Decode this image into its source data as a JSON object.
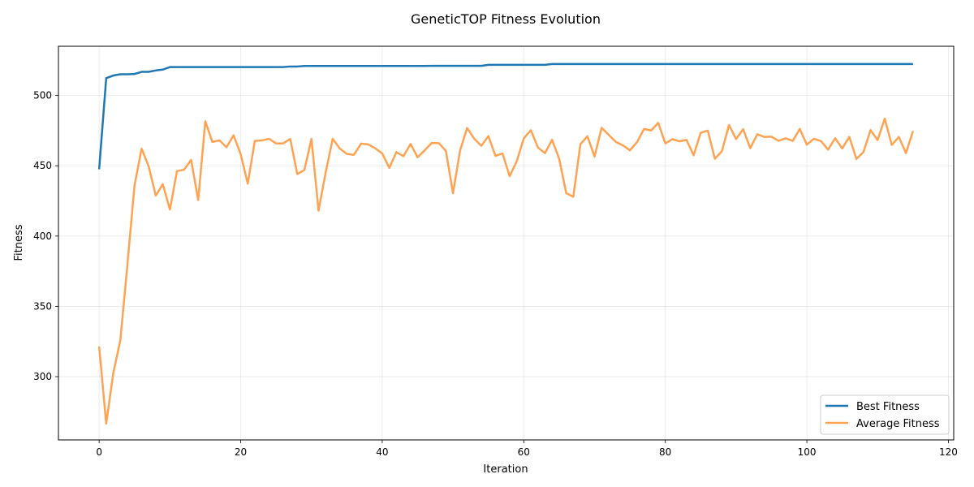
{
  "chart_data": {
    "type": "line",
    "title": "GeneticTOP Fitness Evolution",
    "xlabel": "Iteration",
    "ylabel": "Fitness",
    "xlim": [
      -5.75,
      120.75
    ],
    "ylim": [
      255,
      535
    ],
    "xticks": [
      0,
      20,
      40,
      60,
      80,
      100,
      120
    ],
    "yticks": [
      300,
      350,
      400,
      450,
      500
    ],
    "grid": true,
    "legend_position": "lower-right",
    "series": [
      {
        "name": "Best Fitness",
        "color": "#1f77b4",
        "values": [
          447.5,
          512.3,
          514.2,
          515.1,
          515.1,
          515.3,
          516.8,
          516.8,
          517.8,
          518.4,
          520.2,
          520.2,
          520.2,
          520.2,
          520.2,
          520.2,
          520.2,
          520.2,
          520.2,
          520.2,
          520.2,
          520.2,
          520.2,
          520.2,
          520.2,
          520.2,
          520.2,
          520.6,
          520.6,
          521.0,
          521.0,
          521.0,
          521.0,
          521.0,
          521.0,
          521.0,
          521.0,
          521.0,
          521.0,
          521.0,
          521.0,
          521.0,
          521.0,
          521.0,
          521.0,
          521.0,
          521.0,
          521.1,
          521.1,
          521.1,
          521.1,
          521.1,
          521.1,
          521.1,
          521.1,
          521.8,
          521.8,
          521.8,
          521.8,
          521.8,
          521.8,
          521.8,
          521.8,
          521.8,
          522.4,
          522.4,
          522.4,
          522.4,
          522.4,
          522.4,
          522.4,
          522.4,
          522.4,
          522.4,
          522.4,
          522.4,
          522.4,
          522.4,
          522.4,
          522.4,
          522.4,
          522.4,
          522.4,
          522.4,
          522.4,
          522.4,
          522.4,
          522.4,
          522.4,
          522.4,
          522.4,
          522.4,
          522.4,
          522.4,
          522.4,
          522.4,
          522.4,
          522.4,
          522.4,
          522.4,
          522.4,
          522.4,
          522.4,
          522.4,
          522.4,
          522.4,
          522.4,
          522.4,
          522.4,
          522.4,
          522.4,
          522.4,
          522.4,
          522.4,
          522.4,
          522.4
        ]
      },
      {
        "name": "Average Fitness",
        "color": "#ffa352",
        "values": [
          321.5,
          266.6,
          302.5,
          326.0,
          380.0,
          436.0,
          462.2,
          449.5,
          428.8,
          436.9,
          418.9,
          446.2,
          447.2,
          454.2,
          425.6,
          481.7,
          466.9,
          468.1,
          463.2,
          471.7,
          458.2,
          437.3,
          467.7,
          468.0,
          469.2,
          465.9,
          465.9,
          469.1,
          444.1,
          447.0,
          469.1,
          418.1,
          445.0,
          469.1,
          462.3,
          458.4,
          457.8,
          465.7,
          465.2,
          462.5,
          458.8,
          448.5,
          459.7,
          456.8,
          465.5,
          456.0,
          461.0,
          466.2,
          466.1,
          460.5,
          430.5,
          460.9,
          476.9,
          469.2,
          464.2,
          471.1,
          457.0,
          458.8,
          442.6,
          453.1,
          469.5,
          475.3,
          463.0,
          459.0,
          468.5,
          455.0,
          430.5,
          428.0,
          465.3,
          471.0,
          456.5,
          477.0,
          472.0,
          467.0,
          464.5,
          461.0,
          466.8,
          476.2,
          475.1,
          480.5,
          465.9,
          468.9,
          467.4,
          468.4,
          457.4,
          473.5,
          475.0,
          455.0,
          460.4,
          479.0,
          469.0,
          476.0,
          462.5,
          472.4,
          470.5,
          470.7,
          467.7,
          469.6,
          467.7,
          476.2,
          465.0,
          469.2,
          467.5,
          461.5,
          469.6,
          462.3,
          470.6,
          454.8,
          459.8,
          475.4,
          468.3,
          483.5,
          464.8,
          470.5,
          459.0,
          474.7
        ]
      }
    ]
  }
}
